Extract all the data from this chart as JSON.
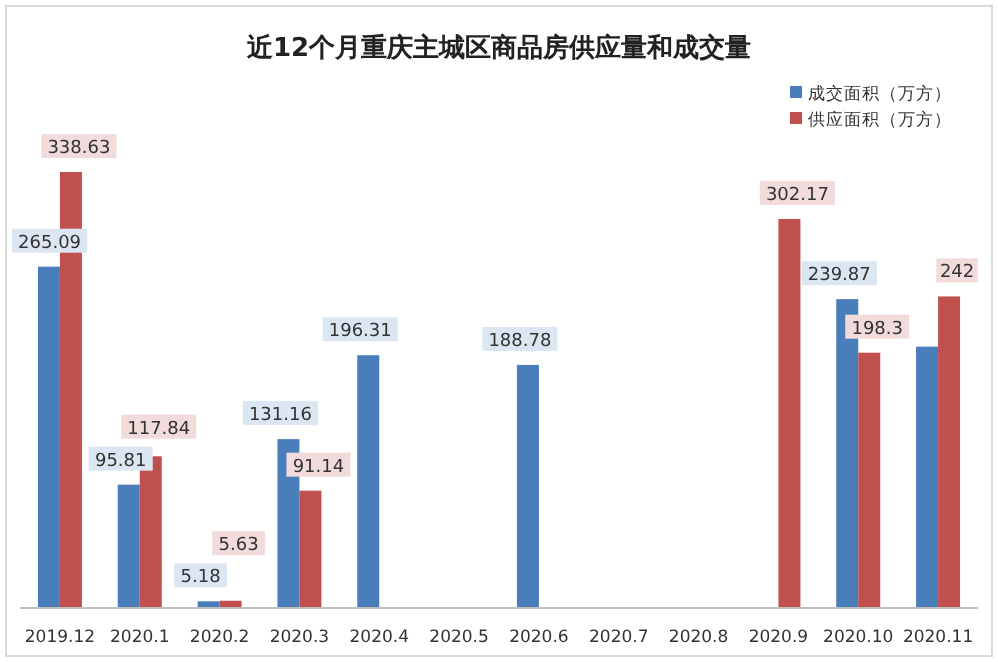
{
  "chart_data": {
    "type": "bar",
    "title": "近12个月重庆主城区商品房供应量和成交量",
    "categories": [
      "2019.12",
      "2020.1",
      "2020.2",
      "2020.3",
      "2020.4",
      "2020.5",
      "2020.6",
      "2020.7",
      "2020.8",
      "2020.9",
      "2020.10",
      "2020.11"
    ],
    "legend": "top right",
    "series": [
      {
        "name": "成交面积（万方）",
        "color": "#4a7ebb",
        "values": [
          265.09,
          95.81,
          5.18,
          131.16,
          196.31,
          null,
          188.78,
          null,
          null,
          null,
          239.87,
          203
        ],
        "value_labels": [
          "265.09",
          "95.81",
          "5.18",
          "131.16",
          "196.31",
          null,
          "188.78",
          null,
          null,
          null,
          "239.87",
          null
        ]
      },
      {
        "name": "供应面积（万方）",
        "color": "#c0504d",
        "values": [
          338.63,
          117.84,
          5.63,
          91.14,
          null,
          null,
          null,
          null,
          null,
          302.17,
          198.3,
          242
        ],
        "value_labels": [
          "338.63",
          "117.84",
          "5.63",
          "91.14",
          null,
          null,
          null,
          null,
          null,
          "302.17",
          "198.3",
          "242"
        ]
      }
    ]
  }
}
